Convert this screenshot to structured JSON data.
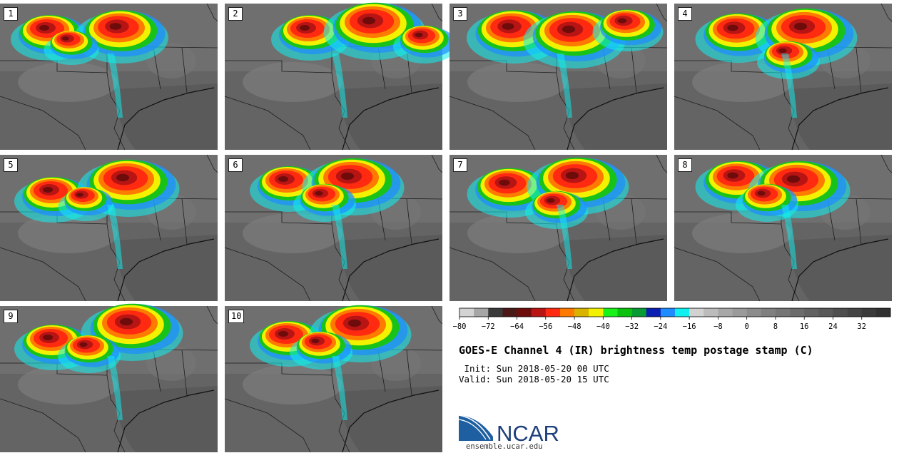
{
  "figure": {
    "title": "GOES-E Channel 4 (IR) brightness temp postage stamp (C)",
    "init_text": " Init: Sun 2018-05-20 00 UTC",
    "valid_text": "Valid: Sun 2018-05-20 15 UTC",
    "website": "ensemble.ucar.edu",
    "logo_text": "NCAR"
  },
  "panels": [
    {
      "label": "1"
    },
    {
      "label": "2"
    },
    {
      "label": "3"
    },
    {
      "label": "4"
    },
    {
      "label": "5"
    },
    {
      "label": "6"
    },
    {
      "label": "7"
    },
    {
      "label": "8"
    },
    {
      "label": "9"
    },
    {
      "label": "10"
    }
  ],
  "colorbar": {
    "unit": "C",
    "tick_labels": [
      "−80",
      "−72",
      "−64",
      "−56",
      "−48",
      "−40",
      "−32",
      "−24",
      "−16",
      "−8",
      "0",
      "8",
      "16",
      "24",
      "32"
    ],
    "colors": [
      "#d3d3d3",
      "#a6a6a6",
      "#3a3a3a",
      "#4b1818",
      "#6e0c0c",
      "#b81414",
      "#ff2a10",
      "#ff7a00",
      "#d8b400",
      "#f2f200",
      "#19f219",
      "#0cc20c",
      "#089b33",
      "#0a1fb2",
      "#1e8cff",
      "#10f0f0",
      "#d2d2d2",
      "#bcbcbc",
      "#a8a8a8",
      "#9a9a9a",
      "#8c8c8c",
      "#808080",
      "#767676",
      "#6c6c6c",
      "#626262",
      "#585858",
      "#4e4e4e",
      "#444444",
      "#3a3a3a",
      "#313131"
    ]
  }
}
